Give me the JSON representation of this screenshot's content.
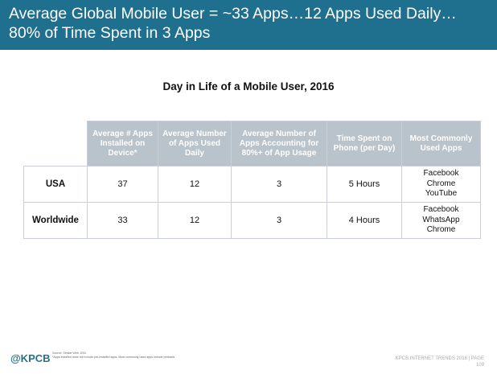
{
  "header": {
    "title_line1": "Average Global Mobile User = ~33 Apps…12 Apps Used Daily…",
    "title_line2": "80% of Time Spent in 3 Apps"
  },
  "subtitle": "Day in Life of a Mobile User, 2016",
  "table": {
    "columns": [
      "Average # Apps Installed on Device*",
      "Average Number of Apps Used Daily",
      "Average Number of Apps Accounting for 80%+ of App Usage",
      "Time Spent on Phone (per Day)",
      "Most Commonly Used Apps"
    ],
    "rows": [
      {
        "label": "USA",
        "installed": "37",
        "used_daily": "12",
        "accounting_80": "3",
        "time_spent": "5 Hours",
        "apps": [
          "Facebook",
          "Chrome",
          "YouTube"
        ]
      },
      {
        "label": "Worldwide",
        "installed": "33",
        "used_daily": "12",
        "accounting_80": "3",
        "time_spent": "4 Hours",
        "apps": [
          "Facebook",
          "WhatsApp",
          "Chrome"
        ]
      }
    ]
  },
  "footer": {
    "logo": "@KPCB",
    "source_line1": "Source: Similar Web, 5/16.",
    "source_line2": "*Apps installed does not include pre-installed apps. Most commonly used apps include preloads.",
    "right_line1": "KPCB INTERNET TRENDS 2016  |  PAGE",
    "right_line2": "109"
  },
  "colors": {
    "header_bg": "#1f6f8e",
    "table_header_bg": "#b8c3cb",
    "logo": "#2a6f86"
  }
}
